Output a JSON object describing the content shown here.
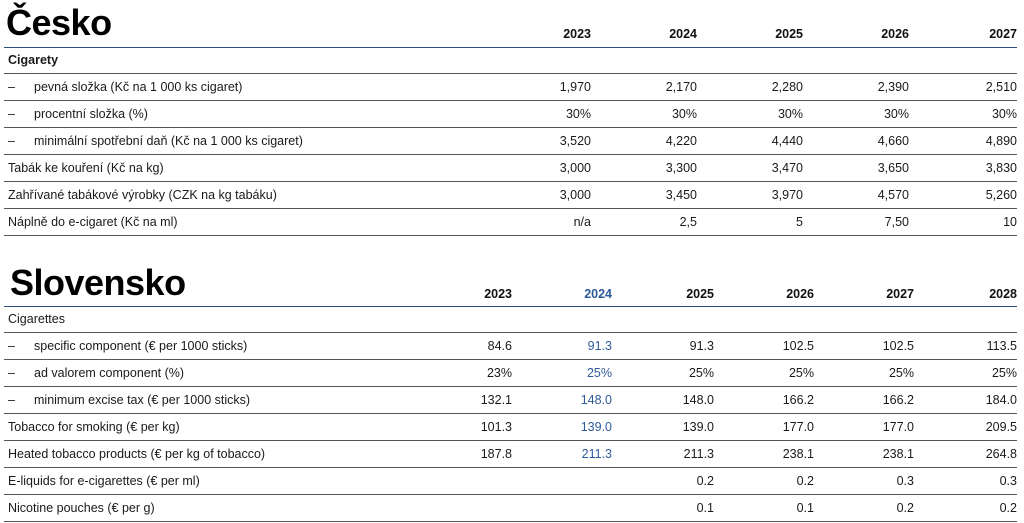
{
  "cesko": {
    "title": "Česko",
    "years": [
      "2023",
      "2024",
      "2025",
      "2026",
      "2027"
    ],
    "group_label": "Cigarety",
    "rows": [
      {
        "dash": "–",
        "label": "pevná složka (Kč na 1 000 ks cigaret)",
        "values": [
          "1,970",
          "2,170",
          "2,280",
          "2,390",
          "2,510"
        ]
      },
      {
        "dash": "–",
        "label": "procentní složka (%)",
        "values": [
          "30%",
          "30%",
          "30%",
          "30%",
          "30%"
        ]
      },
      {
        "dash": "–",
        "label": "minimální spotřební daň (Kč na 1 000 ks cigaret)",
        "values": [
          "3,520",
          "4,220",
          "4,440",
          "4,660",
          "4,890"
        ]
      },
      {
        "dash": "",
        "label": "Tabák ke kouření (Kč na kg)",
        "values": [
          "3,000",
          "3,300",
          "3,470",
          "3,650",
          "3,830"
        ]
      },
      {
        "dash": "",
        "label": "Zahřívané tabákové výrobky (CZK na kg tabáku)",
        "values": [
          "3,000",
          "3,450",
          "3,970",
          "4,570",
          "5,260"
        ]
      },
      {
        "dash": "",
        "label": "Náplně do e-cigaret (Kč na ml)",
        "values": [
          "n/a",
          "2,5",
          "5",
          "7,50",
          "10"
        ]
      }
    ]
  },
  "slovensko": {
    "title": "Slovensko",
    "years": [
      "2023",
      "2024",
      "2025",
      "2026",
      "2027",
      "2028"
    ],
    "group_label": "Cigarettes",
    "highlight_color": "#2e5a9a",
    "rows": [
      {
        "dash": "–",
        "label": "specific component (€ per 1000 sticks)",
        "values": [
          "84.6",
          "91.3",
          "91.3",
          "102.5",
          "102.5",
          "113.5"
        ]
      },
      {
        "dash": "–",
        "label": "ad valorem component (%)",
        "values": [
          "23%",
          "25%",
          "25%",
          "25%",
          "25%",
          "25%"
        ]
      },
      {
        "dash": "–",
        "label": "minimum excise tax (€ per 1000 sticks)",
        "values": [
          "132.1",
          "148.0",
          "148.0",
          "166.2",
          "166.2",
          "184.0"
        ]
      },
      {
        "dash": "",
        "label": "Tobacco for smoking (€ per kg)",
        "values": [
          "101.3",
          "139.0",
          "139.0",
          "177.0",
          "177.0",
          "209.5"
        ]
      },
      {
        "dash": "",
        "label": "Heated tobacco products (€ per kg of tobacco)",
        "values": [
          "187.8",
          "211.3",
          "211.3",
          "238.1",
          "238.1",
          "264.8"
        ]
      },
      {
        "dash": "",
        "label": "E-liquids for e-cigarettes (€ per ml)",
        "values": [
          "",
          "",
          "0.2",
          "0.2",
          "0.3",
          "0.3"
        ]
      },
      {
        "dash": "",
        "label": "Nicotine pouches (€ per g)",
        "values": [
          "",
          "",
          "0.1",
          "0.1",
          "0.2",
          "0.2"
        ]
      }
    ]
  }
}
